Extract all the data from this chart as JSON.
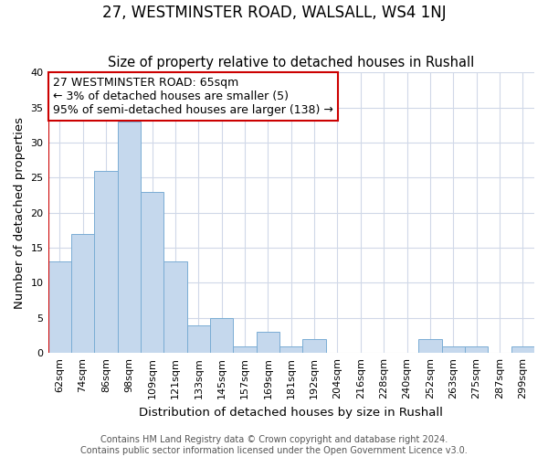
{
  "title": "27, WESTMINSTER ROAD, WALSALL, WS4 1NJ",
  "subtitle": "Size of property relative to detached houses in Rushall",
  "xlabel": "Distribution of detached houses by size in Rushall",
  "ylabel": "Number of detached properties",
  "categories": [
    "62sqm",
    "74sqm",
    "86sqm",
    "98sqm",
    "109sqm",
    "121sqm",
    "133sqm",
    "145sqm",
    "157sqm",
    "169sqm",
    "181sqm",
    "192sqm",
    "204sqm",
    "216sqm",
    "228sqm",
    "240sqm",
    "252sqm",
    "263sqm",
    "275sqm",
    "287sqm",
    "299sqm"
  ],
  "values": [
    13,
    17,
    26,
    33,
    23,
    13,
    4,
    5,
    1,
    3,
    1,
    2,
    0,
    0,
    0,
    0,
    2,
    1,
    1,
    0,
    1
  ],
  "bar_color": "#c5d8ed",
  "bar_edge_color": "#7aadd4",
  "highlight_edge_color": "#cc0000",
  "vline_color": "#cc0000",
  "ylim": [
    0,
    40
  ],
  "yticks": [
    0,
    5,
    10,
    15,
    20,
    25,
    30,
    35,
    40
  ],
  "annotation_line1": "27 WESTMINSTER ROAD: 65sqm",
  "annotation_line2": "← 3% of detached houses are smaller (5)",
  "annotation_line3": "95% of semi-detached houses are larger (138) →",
  "annotation_box_edge_color": "#cc0000",
  "annotation_box_face_color": "#ffffff",
  "footer_line1": "Contains HM Land Registry data © Crown copyright and database right 2024.",
  "footer_line2": "Contains public sector information licensed under the Open Government Licence v3.0.",
  "background_color": "#ffffff",
  "grid_color": "#d0d8e8",
  "title_fontsize": 12,
  "subtitle_fontsize": 10.5,
  "axis_label_fontsize": 9.5,
  "tick_fontsize": 8,
  "annotation_fontsize": 9,
  "footer_fontsize": 7
}
